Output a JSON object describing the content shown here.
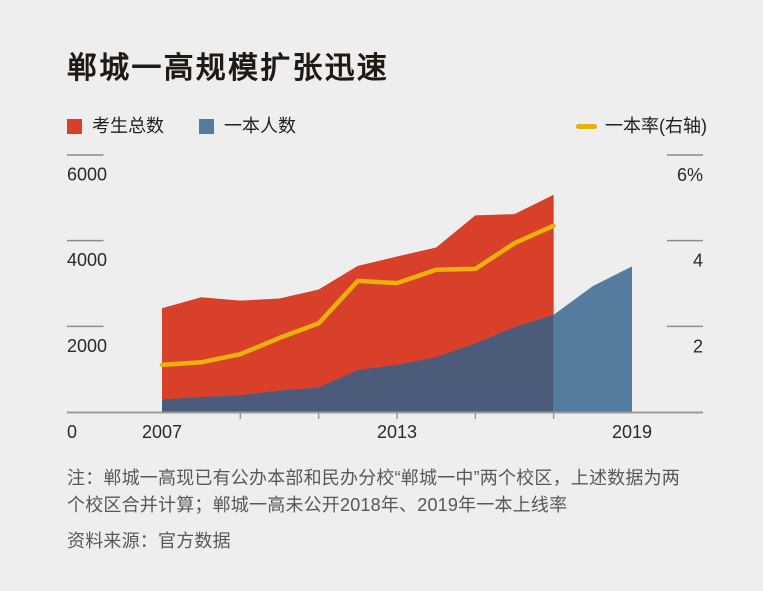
{
  "title": "郸城一高规模扩张迅速",
  "legend": [
    {
      "label": "考生总数",
      "color": "#d8402a",
      "swatch": "square"
    },
    {
      "label": "一本人数",
      "color": "#537c9e",
      "swatch": "square"
    },
    {
      "label": "一本率(右轴)",
      "color": "#e9b109",
      "swatch": "line"
    }
  ],
  "chart_data": {
    "type": "area",
    "title": "郸城一高规模扩张迅速",
    "x_years": [
      2007,
      2008,
      2009,
      2010,
      2011,
      2012,
      2013,
      2014,
      2015,
      2016,
      2017,
      2018,
      2019
    ],
    "series": [
      {
        "name": "考生总数",
        "type": "area",
        "axis": "left",
        "color": "#d8402a",
        "years": [
          2007,
          2008,
          2009,
          2010,
          2011,
          2012,
          2013,
          2014,
          2015,
          2016,
          2017
        ],
        "values": [
          2420,
          2680,
          2600,
          2650,
          2860,
          3410,
          3630,
          3840,
          4590,
          4620,
          5070
        ]
      },
      {
        "name": "一本人数",
        "type": "area",
        "axis": "left",
        "color": "#537c9e",
        "color_under_total": "#4d5b7b",
        "years": [
          2007,
          2008,
          2009,
          2010,
          2011,
          2012,
          2013,
          2014,
          2015,
          2016,
          2017,
          2018,
          2019
        ],
        "values": [
          290,
          350,
          390,
          500,
          570,
          980,
          1100,
          1280,
          1600,
          1980,
          2270,
          2940,
          3400
        ]
      },
      {
        "name": "一本率",
        "type": "line",
        "axis": "right",
        "color": "#e9b109",
        "years": [
          2007,
          2008,
          2009,
          2010,
          2011,
          2012,
          2013,
          2014,
          2015,
          2016,
          2017
        ],
        "values": [
          1.1,
          1.16,
          1.35,
          1.73,
          2.07,
          3.06,
          3.01,
          3.32,
          3.34,
          3.94,
          4.35
        ]
      }
    ],
    "left_axis": {
      "min": 0,
      "max": 6000,
      "ticks": [
        2000,
        4000,
        6000
      ],
      "labels": [
        "2000",
        "4000",
        "6000"
      ],
      "zero_label": "0"
    },
    "right_axis": {
      "min": 0,
      "max": 6,
      "ticks": [
        2,
        4,
        6
      ],
      "labels": [
        "2",
        "4",
        "6%"
      ]
    },
    "x_axis": {
      "labels": [
        {
          "year": 2007,
          "text": "2007"
        },
        {
          "year": 2013,
          "text": "2013"
        },
        {
          "year": 2019,
          "text": "2019"
        }
      ],
      "minor_tick_years": [
        2009,
        2011,
        2013,
        2015,
        2017
      ]
    },
    "grid": "ticks-only",
    "legend_position": "top"
  },
  "notes": {
    "note": "注：郸城一高现已有公办本部和民办分校“郸城一中”两个校区，上述数据为两\n个校区合并计算；郸城一高未公开2018年、2019年一本上线率",
    "source": "资料来源：官方数据"
  },
  "colors": {
    "background": "#eeeeee",
    "axis_line": "#9a9a9a",
    "tick": "#8c8c8c",
    "label": "#2a2a2a",
    "title": "#211a13",
    "note": "#58585a"
  }
}
